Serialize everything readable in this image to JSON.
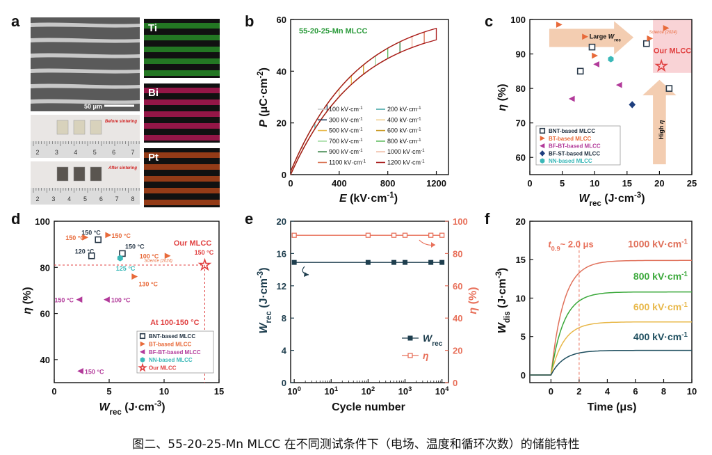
{
  "panel_letters": [
    "a",
    "b",
    "c",
    "d",
    "e",
    "f"
  ],
  "caption": "图二、55-20-25-Mn MLCC 在不同测试条件下（电场、温度和循环次数）的储能特性",
  "panel_a": {
    "scale_bar": "50 μm",
    "before_label": "Before sintering",
    "after_label": "After sintering",
    "ruler_numbers_top": [
      "2",
      "3",
      "4",
      "5",
      "6",
      "7"
    ],
    "ruler_numbers_bottom": [
      "2",
      "3",
      "4",
      "5",
      "6",
      "7",
      "8"
    ],
    "eds": [
      {
        "element": "Ti",
        "color": "#2a9a2a"
      },
      {
        "element": "Bi",
        "color": "#c0185a"
      },
      {
        "element": "Pt",
        "color": "#c04a1a"
      }
    ]
  },
  "chart_data": [
    {
      "id": "b",
      "type": "line",
      "annotation": "55-20-25-Mn MLCC",
      "annotation_color": "#2a9a3a",
      "xlabel": "E (kV·cm⁻¹)",
      "ylabel": "P (μC·cm⁻²)",
      "xlim": [
        0,
        1300
      ],
      "ylim": [
        0,
        60
      ],
      "xticks": [
        0,
        400,
        800,
        1200
      ],
      "yticks": [
        0,
        20,
        40,
        60
      ],
      "series": [
        {
          "name": "100 kV·cm⁻¹",
          "color": "#c8c8c8",
          "emax": 100
        },
        {
          "name": "200 kV·cm⁻¹",
          "color": "#4aa8a8",
          "emax": 200
        },
        {
          "name": "300 kV·cm⁻¹",
          "color": "#1a3a5a",
          "emax": 300
        },
        {
          "name": "400 kV·cm⁻¹",
          "color": "#f0d090",
          "emax": 400
        },
        {
          "name": "500 kV·cm⁻¹",
          "color": "#e8b848",
          "emax": 500
        },
        {
          "name": "600 kV·cm⁻¹",
          "color": "#c89820",
          "emax": 600
        },
        {
          "name": "700 kV·cm⁻¹",
          "color": "#9ad89a",
          "emax": 700
        },
        {
          "name": "800 kV·cm⁻¹",
          "color": "#58b858",
          "emax": 800
        },
        {
          "name": "900 kV·cm⁻¹",
          "color": "#2a7a3a",
          "emax": 900
        },
        {
          "name": "1000 kV·cm⁻¹",
          "color": "#f0b8a0",
          "emax": 1000
        },
        {
          "name": "1100 kV·cm⁻¹",
          "color": "#d87050",
          "emax": 1100
        },
        {
          "name": "1200 kV·cm⁻¹",
          "color": "#a81818",
          "emax": 1200
        }
      ],
      "pmax_at_1200": 54.3
    },
    {
      "id": "c",
      "type": "scatter",
      "xlabel": "W_rec (J·cm⁻³)",
      "ylabel": "η (%)",
      "xlim": [
        0,
        25
      ],
      "ylim": [
        55,
        100
      ],
      "xticks": [
        0,
        5,
        10,
        15,
        20,
        25
      ],
      "yticks": [
        60,
        70,
        80,
        90,
        100
      ],
      "annotations": {
        "large_w": "Large W_rec",
        "high_eta": "High η",
        "our": "Our MLCC",
        "science": "Science (2024)"
      },
      "series": [
        {
          "name": "BNT-based MLCC",
          "marker": "square",
          "color": "#2a3a4a",
          "points": [
            [
              7.8,
              85
            ],
            [
              9.6,
              92
            ],
            [
              18,
              93
            ],
            [
              21.5,
              80
            ]
          ]
        },
        {
          "name": "BT-based MLCC",
          "marker": "tri-right",
          "color": "#e86a3a",
          "points": [
            [
              4.5,
              98.5
            ],
            [
              8.5,
              95
            ],
            [
              10,
              89.5
            ],
            [
              18.5,
              94.5
            ],
            [
              21,
              97.5
            ]
          ]
        },
        {
          "name": "BF-BT-based MLCC",
          "marker": "tri-left",
          "color": "#b23a9a",
          "points": [
            [
              6.5,
              77
            ],
            [
              10.3,
              87
            ],
            [
              13.8,
              81
            ]
          ]
        },
        {
          "name": "BF-ST-based MLCC",
          "marker": "diamond",
          "color": "#1e3e7e",
          "points": [
            [
              15.8,
              75.3
            ]
          ]
        },
        {
          "name": "NN-based MLCC",
          "marker": "hexagon",
          "color": "#3ab8b8",
          "points": [
            [
              12.5,
              88.5
            ]
          ]
        }
      ],
      "our_point": [
        20.3,
        86.5
      ]
    },
    {
      "id": "d",
      "type": "scatter",
      "xlabel": "W_rec (J·cm⁻³)",
      "ylabel": "η (%)",
      "xlim": [
        0,
        15
      ],
      "ylim": [
        30,
        100
      ],
      "xticks": [
        0,
        5,
        10,
        15
      ],
      "yticks": [
        40,
        60,
        80,
        100
      ],
      "annotations": {
        "our": "Our MLCC",
        "condition": "At 100-150 °C",
        "science": "Science (2024)"
      },
      "series": [
        {
          "name": "BNT-based MLCC",
          "marker": "square",
          "color": "#2a3a4a",
          "points": [
            [
              4,
              92,
              "150 °C"
            ],
            [
              3.4,
              85,
              "120 °C"
            ],
            [
              6.2,
              86,
              "150 °C"
            ]
          ]
        },
        {
          "name": "BT-based MLCC",
          "marker": "tri-right",
          "color": "#e86a3a",
          "points": [
            [
              2.8,
              93,
              "150 °C"
            ],
            [
              4.9,
              94,
              "150 °C"
            ],
            [
              7.3,
              76,
              "130 °C"
            ],
            [
              10.3,
              85,
              "100 °C"
            ]
          ]
        },
        {
          "name": "BF-BT-based MLCC",
          "marker": "tri-left",
          "color": "#b23a9a",
          "points": [
            [
              2.3,
              66,
              "150 °C"
            ],
            [
              4.8,
              66,
              "100 °C"
            ],
            [
              2.4,
              35,
              "150 °C"
            ]
          ]
        },
        {
          "name": "NN-based MLCC",
          "marker": "hexagon",
          "color": "#3ab8b8",
          "points": [
            [
              6,
              84,
              "125 °C"
            ]
          ]
        }
      ],
      "our_point": [
        13.7,
        81,
        "150 °C"
      ]
    },
    {
      "id": "e",
      "type": "line",
      "xlabel": "Cycle number",
      "ylabel_left": "W_rec (J·cm⁻³)",
      "ylabel_right": "η (%)",
      "xscale": "log",
      "xlim": [
        0.8,
        15000
      ],
      "ylim_left": [
        0,
        20
      ],
      "ylim_right": [
        0,
        100
      ],
      "yticks_left": [
        0,
        4,
        8,
        12,
        16,
        20
      ],
      "yticks_right": [
        0,
        20,
        40,
        60,
        80,
        100
      ],
      "x": [
        1,
        100,
        500,
        1000,
        5000,
        10000
      ],
      "series": [
        {
          "name": "W_rec",
          "axis": "left",
          "color": "#1e3e4e",
          "marker": "square-filled",
          "values": [
            14.9,
            14.9,
            14.9,
            14.9,
            14.9,
            14.9
          ]
        },
        {
          "name": "η",
          "axis": "right",
          "color": "#e8705a",
          "marker": "square-open",
          "values": [
            91.3,
            91.3,
            91.3,
            91.3,
            91.3,
            91.3
          ]
        }
      ],
      "legend": [
        {
          "label": "W_rec"
        },
        {
          "label": "η"
        }
      ]
    },
    {
      "id": "f",
      "type": "line",
      "xlabel": "Time (μs)",
      "ylabel": "W_dis (J·cm⁻³)",
      "xlim": [
        -1.5,
        10
      ],
      "ylim": [
        -1,
        20
      ],
      "xticks": [
        0,
        2,
        4,
        6,
        8,
        10
      ],
      "yticks": [
        0,
        5,
        10,
        15,
        20
      ],
      "annotation": "t0.9 ~ 2.0 μs",
      "marker_time": 2.0,
      "tau": 0.9,
      "series": [
        {
          "name": "1000 kV·cm⁻¹",
          "color": "#e0705a",
          "final": 14.9
        },
        {
          "name": "800 kV·cm⁻¹",
          "color": "#3aa83a",
          "final": 10.8
        },
        {
          "name": "600 kV·cm⁻¹",
          "color": "#e8b84a",
          "final": 6.9
        },
        {
          "name": "400 kV·cm⁻¹",
          "color": "#1e4e5e",
          "final": 3.2
        }
      ]
    }
  ]
}
